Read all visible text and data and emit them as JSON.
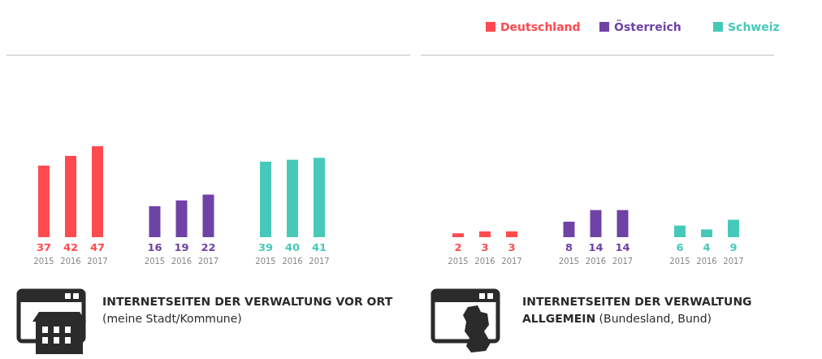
{
  "chart_data": [
    {
      "type": "bar",
      "title": "INTERNETSEITEN DER VERWALTUNG VOR ORT",
      "subtitle": "(meine Stadt/Kommune)",
      "categories": [
        "2015",
        "2016",
        "2017",
        "2015",
        "2016",
        "2017",
        "2015",
        "2016",
        "2017"
      ],
      "series": [
        {
          "color": "#ff4b50",
          "values": [
            37,
            42,
            47,
            null,
            null,
            null,
            null,
            null,
            null
          ]
        },
        {
          "color": "#6f42a6",
          "values": [
            null,
            null,
            null,
            16,
            19,
            22,
            null,
            null,
            null
          ]
        },
        {
          "color": "#47c9b9",
          "values": [
            null,
            null,
            null,
            null,
            null,
            null,
            39,
            40,
            41
          ]
        }
      ],
      "tick_labels": "x",
      "data_labels": true,
      "legend": false,
      "grid": false
    },
    {
      "type": "bar",
      "title": "INTERNETSEITEN DER VERWALTUNG ALLGEMEIN",
      "subtitle": "(Bundesland, Bund)",
      "categories": [
        "2015",
        "2016",
        "2017",
        "2015",
        "2016",
        "2017",
        "2015",
        "2016",
        "2017"
      ],
      "series": [
        {
          "name": "Deutschland",
          "color": "#ff4b50",
          "values": [
            2,
            3,
            3,
            null,
            null,
            null,
            null,
            null,
            null
          ]
        },
        {
          "name": "Österreich",
          "color": "#6f42a6",
          "values": [
            null,
            null,
            null,
            8,
            14,
            14,
            null,
            null,
            null
          ]
        },
        {
          "name": "Schweiz",
          "color": "#47c9b9",
          "values": [
            null,
            null,
            null,
            null,
            null,
            null,
            6,
            4,
            9
          ]
        }
      ],
      "tick_labels": "x",
      "data_labels": true,
      "legend": "top",
      "grid": false
    }
  ]
}
